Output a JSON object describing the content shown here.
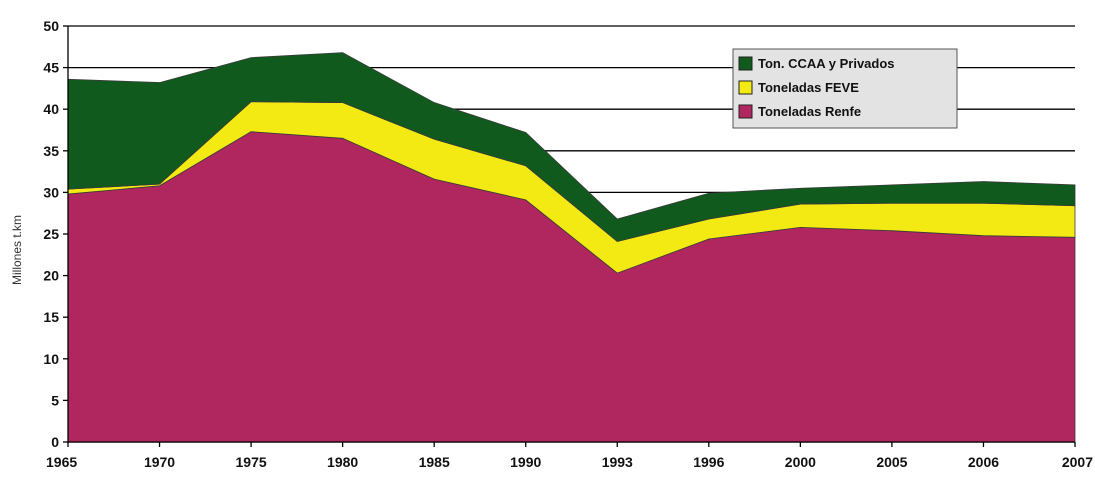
{
  "chart_data": {
    "type": "area",
    "stacked": true,
    "categories": [
      "1965",
      "1970",
      "1975",
      "1980",
      "1985",
      "1990",
      "1993",
      "1996",
      "2000",
      "2005",
      "2006",
      "2007"
    ],
    "series": [
      {
        "name": "Toneladas Renfe",
        "color": "#b0275f",
        "values": [
          29.8,
          30.8,
          37.3,
          36.5,
          31.6,
          29.1,
          20.3,
          24.4,
          25.8,
          25.4,
          24.8,
          24.6
        ]
      },
      {
        "name": "Toneladas FEVE",
        "color": "#f2ea12",
        "values": [
          0.6,
          0.2,
          3.6,
          4.3,
          4.8,
          4.1,
          3.8,
          2.4,
          2.8,
          3.3,
          3.9,
          3.8
        ]
      },
      {
        "name": "Ton. CCAA y Privados",
        "color": "#0f5a1c",
        "values": [
          13.2,
          12.2,
          5.3,
          6.0,
          4.4,
          4.0,
          2.7,
          3.1,
          1.9,
          2.2,
          2.6,
          2.5
        ]
      }
    ],
    "legend_order": [
      "Ton. CCAA y Privados",
      "Toneladas FEVE",
      "Toneladas Renfe"
    ],
    "ylabel": "Millones t.km",
    "xlabel": "",
    "ylim": [
      0,
      50
    ],
    "yticks": [
      0,
      5,
      10,
      15,
      20,
      25,
      30,
      35,
      40,
      45,
      50
    ],
    "grid": true,
    "legend_position": "top-right",
    "plot_background": "#ffffff"
  }
}
